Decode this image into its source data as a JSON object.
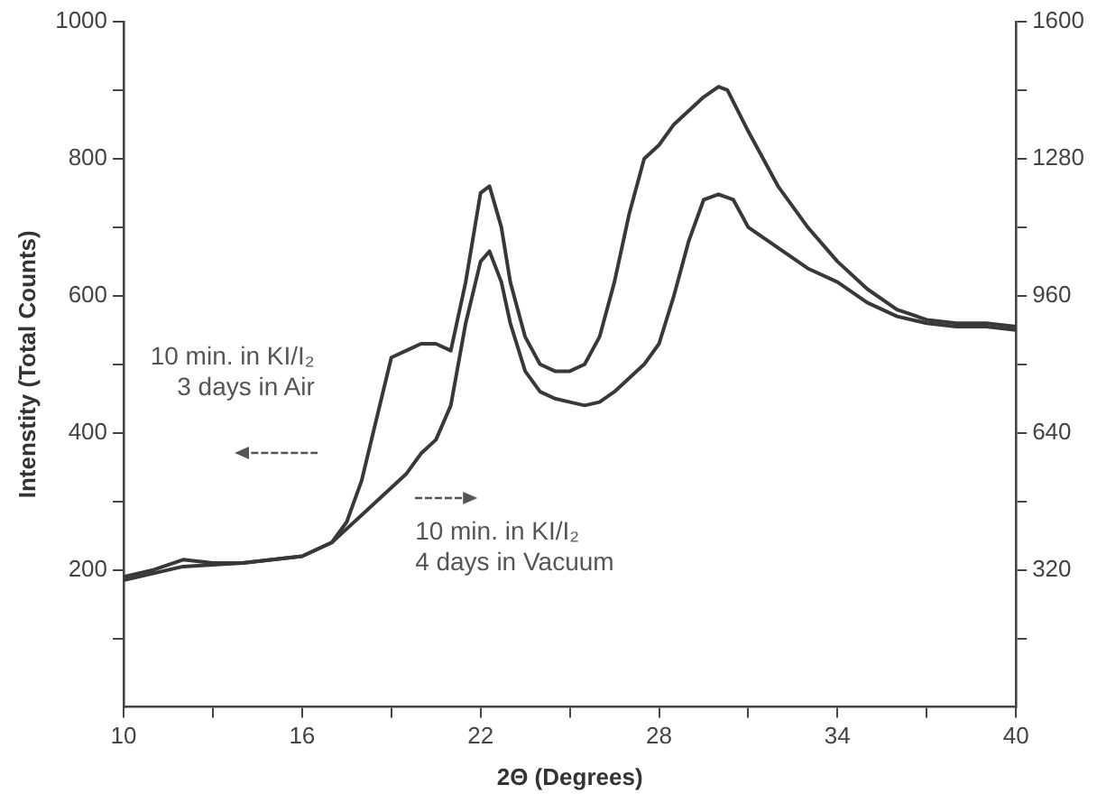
{
  "chart_data": {
    "type": "line",
    "xlabel": "2Θ (Degrees)",
    "ylabel": "Intenstity (Total Counts)",
    "xlim": [
      10,
      40
    ],
    "xticks": [
      10,
      {
        "value": 13,
        "label": null
      },
      16,
      {
        "value": 19,
        "label": null
      },
      22,
      {
        "value": 25,
        "label": null
      },
      28,
      {
        "value": 31,
        "label": null
      },
      34,
      {
        "value": 37,
        "label": null
      },
      40
    ],
    "ylim": [
      0,
      1000
    ],
    "yticks": [
      {
        "value": 100,
        "label": null
      },
      200,
      {
        "value": 300,
        "label": null
      },
      400,
      {
        "value": 500,
        "label": null
      },
      600,
      {
        "value": 700,
        "label": null
      },
      800,
      {
        "value": 900,
        "label": null
      },
      1000
    ],
    "y2lim": [
      0,
      1600
    ],
    "y2ticks": [
      {
        "value": 160,
        "label": null
      },
      320,
      {
        "value": 480,
        "label": null
      },
      640,
      {
        "value": 800,
        "label": null
      },
      960,
      {
        "value": 1120,
        "label": null
      },
      1280,
      {
        "value": 1440,
        "label": null
      },
      1600
    ],
    "grid": false,
    "legend": false,
    "marker": "none",
    "line_style": "solid",
    "series": [
      {
        "color": "#383838",
        "x": [
          10,
          11,
          12,
          13,
          14,
          15,
          16,
          17,
          17.5,
          18,
          18.5,
          19,
          19.5,
          20,
          20.5,
          21,
          21.5,
          22,
          22.3,
          22.7,
          23,
          23.5,
          24,
          24.5,
          25,
          25.5,
          26,
          26.5,
          27,
          27.5,
          28,
          28.5,
          29,
          29.5,
          30,
          30.3,
          31,
          32,
          33,
          34,
          35,
          36,
          37,
          38,
          39,
          40
        ],
        "values": [
          190,
          200,
          215,
          210,
          210,
          215,
          220,
          240,
          270,
          330,
          420,
          510,
          520,
          530,
          530,
          520,
          620,
          750,
          760,
          700,
          620,
          540,
          500,
          490,
          490,
          500,
          540,
          620,
          720,
          800,
          820,
          850,
          870,
          890,
          905,
          900,
          840,
          760,
          700,
          650,
          610,
          580,
          565,
          560,
          560,
          555
        ]
      },
      {
        "color": "#383838",
        "axis": "y2",
        "x": [
          10,
          12,
          14,
          16,
          17,
          17.5,
          18,
          18.5,
          19,
          19.5,
          20,
          20.5,
          21,
          21.5,
          22,
          22.3,
          22.7,
          23,
          23.5,
          24,
          24.5,
          25,
          25.5,
          26,
          26.5,
          27,
          27.5,
          28,
          28.5,
          29,
          29.5,
          30,
          30.5,
          31,
          32,
          33,
          34,
          35,
          36,
          37,
          38,
          39,
          40
        ],
        "values": [
          296,
          328,
          336,
          352,
          384,
          416,
          448,
          480,
          512,
          544,
          592,
          624,
          704,
          896,
          1040,
          1064,
          992,
          896,
          784,
          736,
          720,
          712,
          704,
          712,
          736,
          768,
          800,
          848,
          960,
          1088,
          1184,
          1197,
          1184,
          1120,
          1072,
          1024,
          992,
          944,
          912,
          896,
          888,
          888,
          880
        ]
      }
    ],
    "annotations": [
      "10 min. in KI/I₂\n3 days in Air",
      "10 min. in KI/I₂\n4 days in Vacuum"
    ]
  }
}
